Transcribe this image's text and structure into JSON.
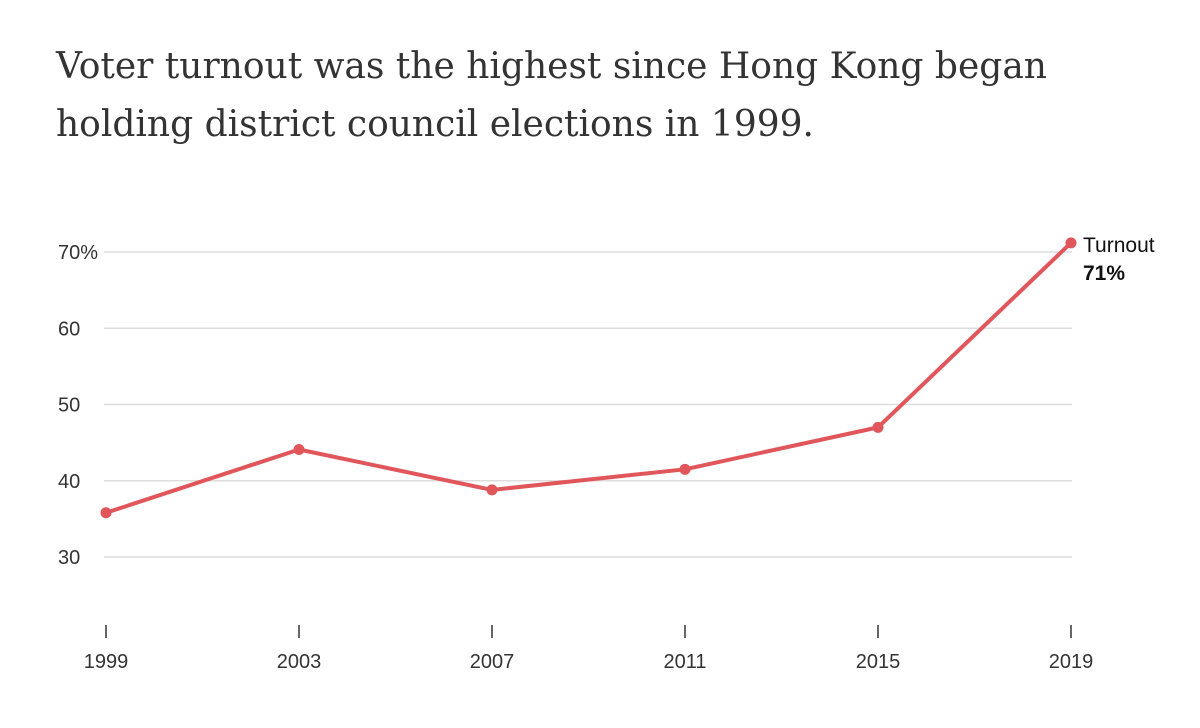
{
  "chart_data": {
    "type": "line",
    "title": "Voter turnout was the highest since Hong Kong began holding district council elections in 1999.",
    "xlabel": "",
    "ylabel": "",
    "categories": [
      "1999",
      "2003",
      "2007",
      "2011",
      "2015",
      "2019"
    ],
    "series": [
      {
        "name": "Turnout",
        "values": [
          35.8,
          44.1,
          38.8,
          41.5,
          47.0,
          71.2
        ],
        "end_label": "Turnout",
        "end_value_label": "71%"
      }
    ],
    "ylim": [
      30,
      71
    ],
    "yticks": [
      {
        "value": 70,
        "label": "70%"
      },
      {
        "value": 60,
        "label": "60"
      },
      {
        "value": 50,
        "label": "50"
      },
      {
        "value": 40,
        "label": "40"
      },
      {
        "value": 30,
        "label": "30"
      }
    ],
    "grid": true,
    "legend": "none",
    "colors": {
      "line": "#e0565b",
      "grid": "#dddddd",
      "text": "#333333"
    }
  }
}
